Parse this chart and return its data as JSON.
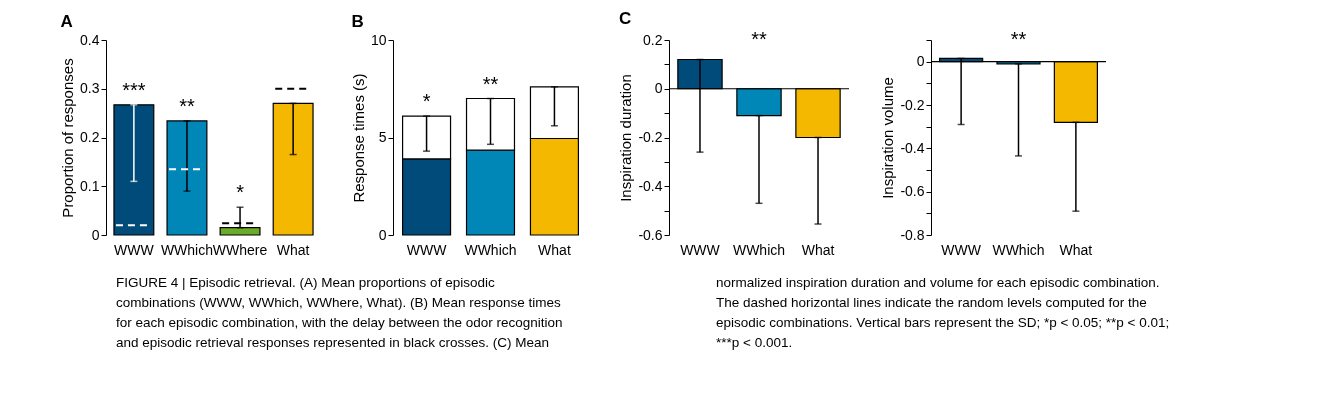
{
  "chart_data": [
    {
      "type": "bar",
      "title": "A",
      "ylabel": "Proportion of responses",
      "categories": [
        "WWW",
        "WWhich",
        "WWhere",
        "What"
      ],
      "series": [
        {
          "type": "bar",
          "colors": [
            "#004b7a",
            "#0087b8",
            "#6aac2a",
            "#f5b800"
          ],
          "values": [
            0.267,
            0.234,
            0.015,
            0.27
          ],
          "errors": [
            [
              0.11,
              0.267
            ],
            [
              0.09,
              0.234
            ],
            [
              0.015,
              0.057
            ],
            [
              0.165,
              0.27
            ]
          ]
        }
      ],
      "ref_lines": [
        {
          "axis": "y",
          "value": 0.02,
          "color": "#ffffff",
          "line_style": "dashed"
        },
        {
          "axis": "y",
          "value": 0.135,
          "color": "#ffffff",
          "line_style": "dashed"
        },
        {
          "axis": "y",
          "value": 0.024,
          "color": "#000000",
          "line_style": "dashed"
        },
        {
          "axis": "y",
          "value": 0.3,
          "color": "#000000",
          "line_style": "dashed"
        }
      ],
      "ylim": [
        0,
        0.4
      ],
      "yticks": [
        0,
        0.1,
        0.2,
        0.3,
        0.4
      ],
      "annotations": [
        "***",
        "**",
        "*"
      ]
    },
    {
      "type": "bar",
      "title": "B",
      "ylabel": "Response times (s)",
      "categories": [
        "WWW",
        "WWhich",
        "What"
      ],
      "stacked": true,
      "series": [
        {
          "type": "bar",
          "colors": [
            "#004b7a",
            "#0087b8",
            "#f5b800"
          ],
          "values": [
            3.9,
            4.35,
            4.95
          ]
        },
        {
          "type": "bar",
          "colors": [
            "#ffffff",
            "#ffffff",
            "#ffffff"
          ],
          "values": [
            2.2,
            2.65,
            2.65
          ],
          "errors": [
            [
              4.3,
              6.1
            ],
            [
              4.65,
              7.0
            ],
            [
              5.6,
              7.6
            ]
          ]
        }
      ],
      "ylim": [
        0,
        10
      ],
      "yticks": [
        0,
        5,
        10
      ],
      "annotations": [
        "*",
        "**"
      ]
    },
    {
      "type": "bar",
      "title": "C",
      "ylabel": "Inspiration duration",
      "categories": [
        "WWW",
        "WWhich",
        "What"
      ],
      "series": [
        {
          "type": "bar",
          "colors": [
            "#004b7a",
            "#0087b8",
            "#f5b800"
          ],
          "values": [
            0.12,
            -0.11,
            -0.2
          ],
          "errors": [
            [
              -0.26,
              0.12
            ],
            [
              -0.47,
              -0.11
            ],
            [
              -0.555,
              -0.2
            ]
          ]
        }
      ],
      "ylim": [
        -0.6,
        0.2
      ],
      "yticks": [
        -0.6,
        {
          "value": -0.5,
          "label": null
        },
        -0.4,
        {
          "value": -0.3,
          "label": null
        },
        -0.2,
        {
          "value": -0.1,
          "label": null
        },
        0,
        {
          "value": 0.1,
          "label": null
        },
        0.2
      ],
      "annotations": [
        "**"
      ]
    },
    {
      "type": "bar",
      "ylabel": "Inspiration volume",
      "categories": [
        "WWW",
        "WWhich",
        "What"
      ],
      "series": [
        {
          "type": "bar",
          "colors": [
            "#004b7a",
            "#0087b8",
            "#f5b800"
          ],
          "values": [
            0.015,
            -0.01,
            -0.28
          ],
          "errors": [
            [
              -0.29,
              0.015
            ],
            [
              -0.435,
              -0.01
            ],
            [
              -0.69,
              -0.28
            ]
          ]
        }
      ],
      "ylim": [
        -0.8,
        0.1
      ],
      "yticks": [
        -0.8,
        {
          "value": -0.7,
          "label": null
        },
        -0.6,
        {
          "value": -0.5,
          "label": null
        },
        -0.4,
        {
          "value": -0.3,
          "label": null
        },
        -0.2,
        {
          "value": -0.1,
          "label": null
        },
        0,
        {
          "value": 0.1,
          "label": null
        }
      ],
      "annotations": [
        "**"
      ]
    },
    {
      "type": "other",
      "annotations": [
        "FIGURE 4 | Episodic retrieval. (A) Mean proportions of episodic",
        "combinations (WWW, WWhich, WWhere, What). (B) Mean response times",
        "for each episodic combination, with the delay between the odor recognition",
        "and episodic retrieval responses represented in black crosses. (C) Mean",
        "normalized inspiration duration and volume for each episodic combination.",
        "The dashed horizontal lines indicate the random levels computed for the",
        "episodic combinations. Vertical bars represent the SD; *p < 0.05; **p < 0.01;",
        "***p < 0.001."
      ]
    }
  ]
}
